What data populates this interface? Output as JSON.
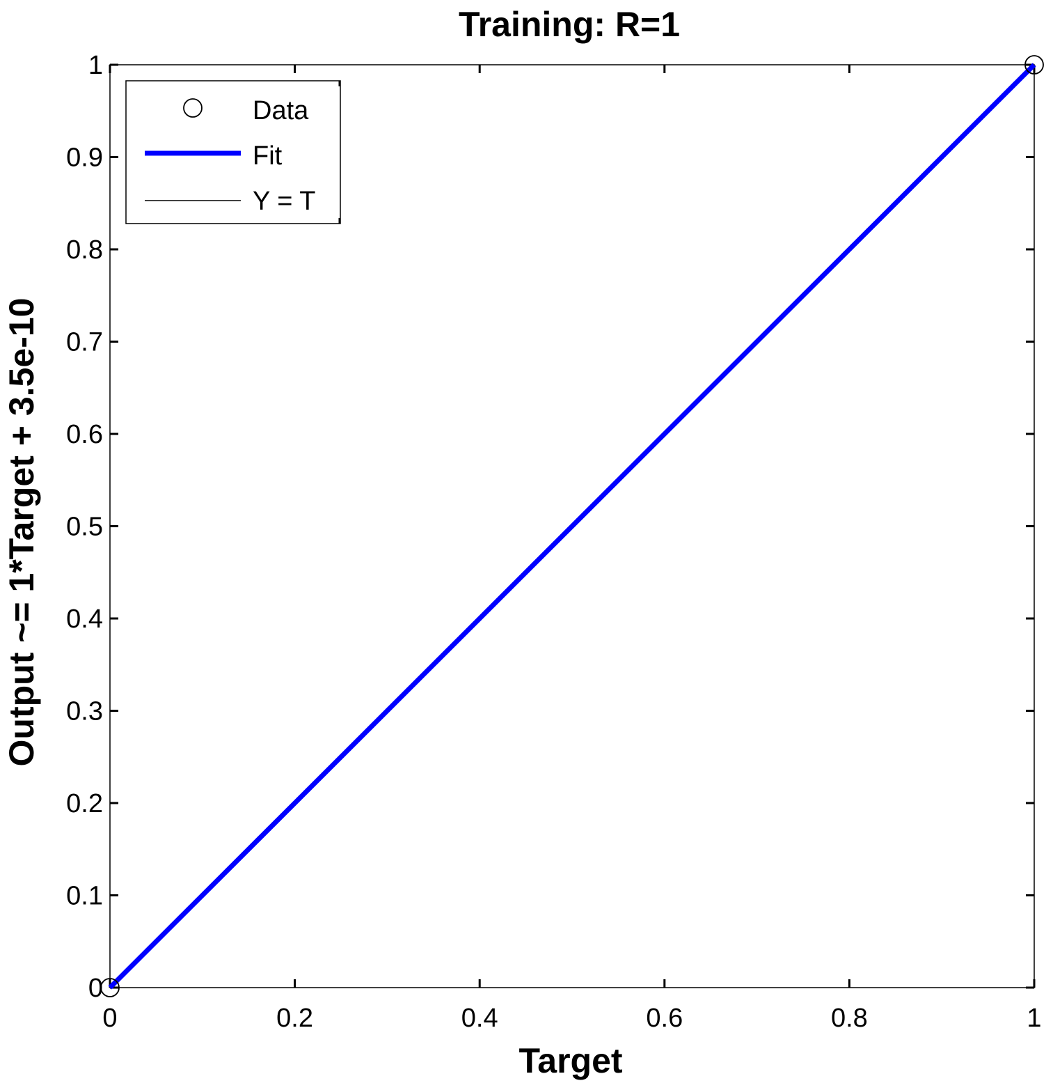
{
  "chart_data": {
    "type": "scatter",
    "title": "Training: R=1",
    "xlabel": "Target",
    "ylabel": "Output ~= 1*Target + 3.5e-10",
    "xlim": [
      0,
      1
    ],
    "ylim": [
      0,
      1
    ],
    "xticks": [
      0,
      0.2,
      0.4,
      0.6,
      0.8,
      1
    ],
    "xtick_labels": [
      "0",
      "0.2",
      "0.4",
      "0.6",
      "0.8",
      "1"
    ],
    "yticks": [
      0,
      0.1,
      0.2,
      0.3,
      0.4,
      0.5,
      0.6,
      0.7,
      0.8,
      0.9,
      1
    ],
    "ytick_labels": [
      "0",
      "0.1",
      "0.2",
      "0.3",
      "0.4",
      "0.5",
      "0.6",
      "0.7",
      "0.8",
      "0.9",
      "1"
    ],
    "grid": false,
    "legend_position": "top-left",
    "series": [
      {
        "name": "Data",
        "kind": "markers",
        "marker": "circle",
        "color": "#000000",
        "x": [
          0,
          1
        ],
        "y": [
          0,
          1
        ]
      },
      {
        "name": "Fit",
        "kind": "line",
        "color": "#0000ff",
        "x": [
          0,
          1
        ],
        "y": [
          0,
          1
        ]
      },
      {
        "name": "Y = T",
        "kind": "line",
        "color": "#000000",
        "x": [
          0,
          1
        ],
        "y": [
          0,
          1
        ]
      }
    ]
  }
}
